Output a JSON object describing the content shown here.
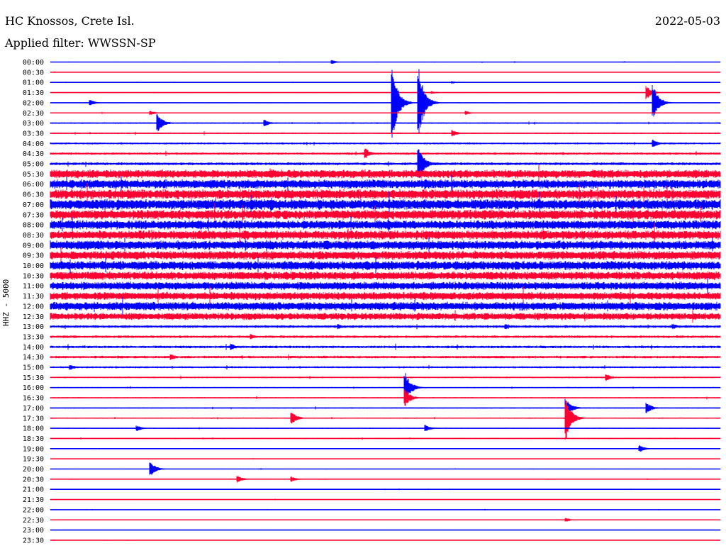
{
  "header": {
    "station": "HC Knossos, Crete Isl.",
    "filter": "Applied filter: WWSSN-SP",
    "date": "2022-05-03"
  },
  "channel_label": "HHZ - 5000",
  "colors": {
    "blue": "#0000ff",
    "red": "#ff0033"
  },
  "chart_data": {
    "type": "line",
    "title": "HC Knossos, Crete Isl.",
    "subtitle": "Applied filter: WWSSN-SP",
    "ylabel": "HHZ - 5000",
    "tick_labels": [
      "00:00",
      "00:30",
      "01:00",
      "01:30",
      "02:00",
      "02:30",
      "03:00",
      "03:30",
      "04:00",
      "04:30",
      "05:00",
      "05:30",
      "06:00",
      "06:30",
      "07:00",
      "07:30",
      "08:00",
      "08:30",
      "09:00",
      "09:30",
      "10:00",
      "10:30",
      "11:00",
      "11:30",
      "12:00",
      "12:30",
      "13:00",
      "13:30",
      "14:00",
      "14:30",
      "15:00",
      "15:30",
      "16:00",
      "16:30",
      "17:00",
      "17:30",
      "18:00",
      "18:30",
      "19:00",
      "19:30",
      "20:00",
      "20:30",
      "21:00",
      "21:30",
      "22:00",
      "22:30",
      "23:00",
      "23:30"
    ],
    "trace_colors_alternate": [
      "#0000ff",
      "#ff0033"
    ],
    "trace_noise_level": [
      0.6,
      0.6,
      0.5,
      0.6,
      0.6,
      0.8,
      1.2,
      1.2,
      1.5,
      1.8,
      2.2,
      6.5,
      7.0,
      7.5,
      8.0,
      7.5,
      7.0,
      7.0,
      7.0,
      6.8,
      7.0,
      6.5,
      6.2,
      6.0,
      6.5,
      5.5,
      2.0,
      2.0,
      2.0,
      2.0,
      1.5,
      1.2,
      1.0,
      1.0,
      1.0,
      1.0,
      0.8,
      0.8,
      0.6,
      0.6,
      0.6,
      0.6,
      0.6,
      0.5,
      0.5,
      0.5,
      0.5,
      0.5
    ],
    "events": [
      {
        "trace": 0,
        "x": 0.42,
        "amp": 3
      },
      {
        "trace": 2,
        "x": 0.6,
        "amp": 2
      },
      {
        "trace": 3,
        "x": 0.89,
        "amp": 10
      },
      {
        "trace": 3,
        "x": 0.57,
        "amp": 2
      },
      {
        "trace": 4,
        "x": 0.51,
        "amp": 60
      },
      {
        "trace": 4,
        "x": 0.55,
        "amp": 50
      },
      {
        "trace": 4,
        "x": 0.9,
        "amp": 25
      },
      {
        "trace": 4,
        "x": 0.06,
        "amp": 4
      },
      {
        "trace": 5,
        "x": 0.15,
        "amp": 3
      },
      {
        "trace": 5,
        "x": 0.62,
        "amp": 3
      },
      {
        "trace": 6,
        "x": 0.16,
        "amp": 14
      },
      {
        "trace": 6,
        "x": 0.32,
        "amp": 5
      },
      {
        "trace": 7,
        "x": 0.6,
        "amp": 5
      },
      {
        "trace": 8,
        "x": 0.9,
        "amp": 6
      },
      {
        "trace": 9,
        "x": 0.47,
        "amp": 8
      },
      {
        "trace": 10,
        "x": 0.55,
        "amp": 25
      },
      {
        "trace": 11,
        "x": 0.33,
        "amp": 8
      },
      {
        "trace": 12,
        "x": 0.56,
        "amp": 8
      },
      {
        "trace": 14,
        "x": 0.33,
        "amp": 10
      },
      {
        "trace": 18,
        "x": 0.36,
        "amp": 6
      },
      {
        "trace": 26,
        "x": 0.43,
        "amp": 4
      },
      {
        "trace": 26,
        "x": 0.68,
        "amp": 4
      },
      {
        "trace": 26,
        "x": 0.93,
        "amp": 4
      },
      {
        "trace": 27,
        "x": 0.3,
        "amp": 4
      },
      {
        "trace": 28,
        "x": 0.27,
        "amp": 5
      },
      {
        "trace": 29,
        "x": 0.18,
        "amp": 5
      },
      {
        "trace": 30,
        "x": 0.03,
        "amp": 4
      },
      {
        "trace": 31,
        "x": 0.83,
        "amp": 5
      },
      {
        "trace": 32,
        "x": 0.53,
        "amp": 22
      },
      {
        "trace": 33,
        "x": 0.53,
        "amp": 12
      },
      {
        "trace": 34,
        "x": 0.77,
        "amp": 14
      },
      {
        "trace": 34,
        "x": 0.89,
        "amp": 8
      },
      {
        "trace": 35,
        "x": 0.36,
        "amp": 10
      },
      {
        "trace": 35,
        "x": 0.77,
        "amp": 30
      },
      {
        "trace": 36,
        "x": 0.13,
        "amp": 4
      },
      {
        "trace": 36,
        "x": 0.56,
        "amp": 5
      },
      {
        "trace": 38,
        "x": 0.88,
        "amp": 5
      },
      {
        "trace": 40,
        "x": 0.15,
        "amp": 10
      },
      {
        "trace": 41,
        "x": 0.28,
        "amp": 5
      },
      {
        "trace": 41,
        "x": 0.36,
        "amp": 4
      },
      {
        "trace": 45,
        "x": 0.77,
        "amp": 3
      }
    ]
  }
}
